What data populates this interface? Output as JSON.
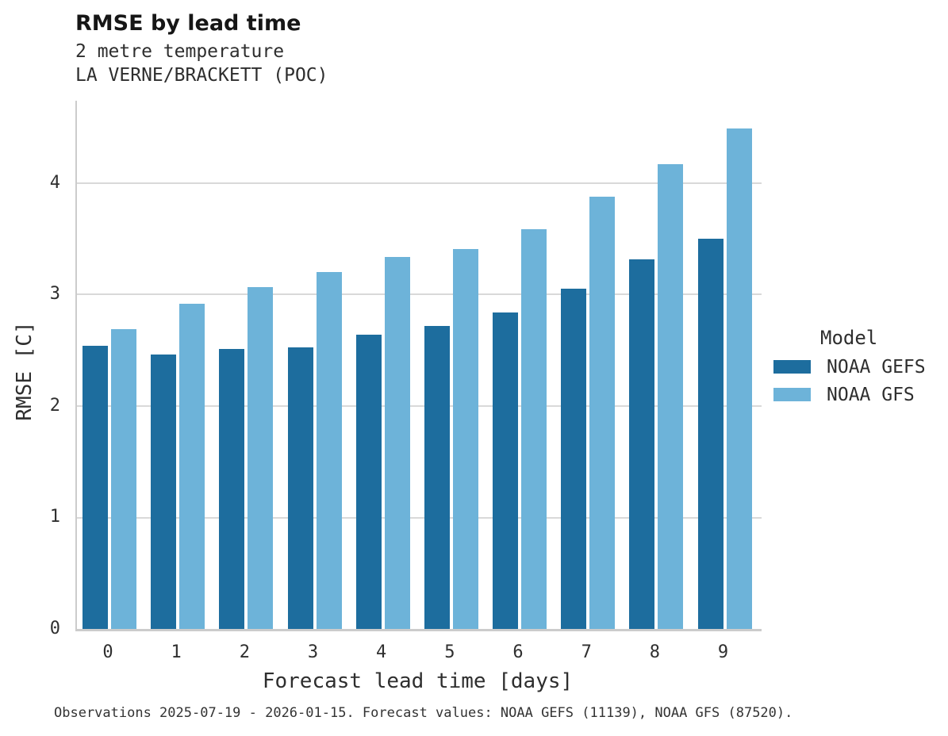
{
  "header": {
    "title": "RMSE by lead time",
    "subtitle_line1": "2 metre temperature",
    "subtitle_line2": "LA VERNE/BRACKETT (POC)"
  },
  "chart_data": {
    "type": "bar",
    "title": "RMSE by lead time",
    "subtitle": [
      "2 metre temperature",
      "LA VERNE/BRACKETT (POC)"
    ],
    "categories": [
      "0",
      "1",
      "2",
      "3",
      "4",
      "5",
      "6",
      "7",
      "8",
      "9"
    ],
    "series": [
      {
        "name": "NOAA GEFS",
        "color": "#1d6d9e",
        "values": [
          2.54,
          2.46,
          2.51,
          2.53,
          2.64,
          2.72,
          2.84,
          3.05,
          3.32,
          3.5
        ]
      },
      {
        "name": "NOAA GFS",
        "color": "#6db3d9",
        "values": [
          2.69,
          2.92,
          3.07,
          3.2,
          3.34,
          3.41,
          3.59,
          3.88,
          4.17,
          4.49
        ]
      }
    ],
    "xlabel": "Forecast lead time [days]",
    "ylabel": "RMSE [C]",
    "ylim": [
      0,
      4.74
    ],
    "yticks": [
      0,
      1,
      2,
      3,
      4
    ],
    "grid": true,
    "legend_title": "Model",
    "legend_position": "right"
  },
  "legend": {
    "title": "Model",
    "entries": [
      {
        "label": "NOAA GEFS",
        "color": "#1d6d9e"
      },
      {
        "label": "NOAA GFS",
        "color": "#6db3d9"
      }
    ]
  },
  "footer": {
    "note": "Observations 2025-07-19 - 2026-01-15. Forecast values: NOAA GEFS (11139), NOAA GFS (87520)."
  }
}
